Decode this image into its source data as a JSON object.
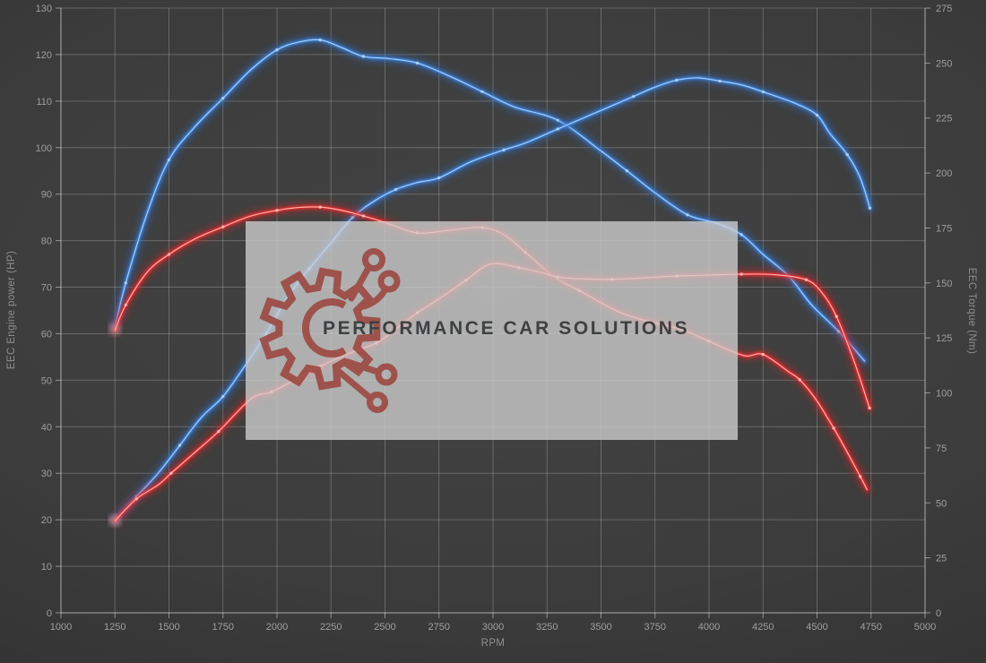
{
  "watermark": {
    "text": "PERFORMANCE CAR SOLUTIONS",
    "logo": "gear-circuit-logo",
    "logo_color": "#9a423a",
    "text_color": "#3e4042",
    "box_color": "rgba(206,206,206,0.78)"
  },
  "colors": {
    "background": "#3a3a3a",
    "grid": "rgba(255,255,255,0.22)",
    "tick_text": "#9f9f9f",
    "blue_curve": "#3c82d8",
    "red_curve": "#e23030"
  },
  "chart_data": {
    "type": "line",
    "grid": true,
    "legend_position": "none",
    "x_axis": {
      "label": "RPM",
      "min": 1000,
      "max": 5000,
      "step": 250,
      "ticks": [
        "1000",
        "1250",
        "1500",
        "1750",
        "2000",
        "2250",
        "2500",
        "2750",
        "3000",
        "3250",
        "3500",
        "3750",
        "4000",
        "4250",
        "4500",
        "4750",
        "5000"
      ]
    },
    "left_axis": {
      "label": "EEC Engine power (HP)",
      "min": 0,
      "max": 130,
      "step": 10,
      "ticks": [
        "0",
        "10",
        "20",
        "30",
        "40",
        "50",
        "60",
        "70",
        "80",
        "90",
        "100",
        "110",
        "120",
        "130"
      ]
    },
    "right_axis": {
      "label": "EEC Torque (Nm)",
      "min": 0,
      "max": 275,
      "step": 25,
      "ticks": [
        "0",
        "25",
        "50",
        "75",
        "100",
        "125",
        "150",
        "175",
        "200",
        "225",
        "250",
        "275"
      ]
    },
    "series": [
      {
        "name": "blue-torque",
        "axis": "right",
        "unit": "Nm",
        "color": "#3c82d8",
        "glow": "#2d6ec9",
        "highlight": "#b8d6f5",
        "points": [
          [
            1250,
            130
          ],
          [
            1300,
            150
          ],
          [
            1400,
            182
          ],
          [
            1500,
            206
          ],
          [
            1620,
            221
          ],
          [
            1750,
            234
          ],
          [
            1880,
            247
          ],
          [
            2000,
            256
          ],
          [
            2100,
            259.5
          ],
          [
            2200,
            260.5
          ],
          [
            2300,
            257
          ],
          [
            2400,
            253
          ],
          [
            2520,
            252
          ],
          [
            2650,
            250
          ],
          [
            2800,
            244
          ],
          [
            2950,
            237
          ],
          [
            3100,
            230
          ],
          [
            3300,
            224
          ],
          [
            3500,
            210
          ],
          [
            3620,
            201
          ],
          [
            3750,
            191
          ],
          [
            3900,
            181
          ],
          [
            4040,
            177
          ],
          [
            4150,
            172
          ],
          [
            4250,
            163
          ],
          [
            4370,
            153
          ],
          [
            4475,
            140
          ],
          [
            4600,
            128
          ],
          [
            4720,
            114.5
          ]
        ]
      },
      {
        "name": "blue-power",
        "axis": "left",
        "unit": "HP",
        "color": "#3c82d8",
        "glow": "#2d6ec9",
        "highlight": "#b8d6f5",
        "points": [
          [
            1250,
            20
          ],
          [
            1350,
            25
          ],
          [
            1450,
            30
          ],
          [
            1550,
            36
          ],
          [
            1650,
            42
          ],
          [
            1750,
            46.5
          ],
          [
            1850,
            53
          ],
          [
            1950,
            60
          ],
          [
            2050,
            68
          ],
          [
            2150,
            74
          ],
          [
            2250,
            79.5
          ],
          [
            2350,
            85
          ],
          [
            2450,
            88.5
          ],
          [
            2550,
            91
          ],
          [
            2650,
            92.5
          ],
          [
            2750,
            93.5
          ],
          [
            2900,
            97
          ],
          [
            3050,
            99.5
          ],
          [
            3150,
            101
          ],
          [
            3300,
            104
          ],
          [
            3500,
            108
          ],
          [
            3650,
            111
          ],
          [
            3750,
            113
          ],
          [
            3850,
            114.5
          ],
          [
            3950,
            115
          ],
          [
            4050,
            114.3
          ],
          [
            4150,
            113.5
          ],
          [
            4250,
            112
          ],
          [
            4400,
            109.5
          ],
          [
            4500,
            107
          ],
          [
            4560,
            103
          ],
          [
            4640,
            98.5
          ],
          [
            4700,
            93.5
          ],
          [
            4745,
            87
          ]
        ]
      },
      {
        "name": "red-torque",
        "axis": "right",
        "unit": "Nm",
        "color": "#e23030",
        "glow": "#d42020",
        "highlight": "#ffc6c6",
        "points": [
          [
            1250,
            128.5
          ],
          [
            1300,
            140
          ],
          [
            1400,
            155
          ],
          [
            1500,
            163
          ],
          [
            1620,
            170
          ],
          [
            1750,
            175.5
          ],
          [
            1880,
            180.5
          ],
          [
            2000,
            183
          ],
          [
            2100,
            184.3
          ],
          [
            2200,
            184.5
          ],
          [
            2300,
            183
          ],
          [
            2400,
            180.5
          ],
          [
            2500,
            177.5
          ],
          [
            2650,
            172.8
          ],
          [
            2800,
            174
          ],
          [
            2950,
            175.2
          ],
          [
            3050,
            172
          ],
          [
            3150,
            164
          ],
          [
            3280,
            153
          ],
          [
            3400,
            146.5
          ],
          [
            3580,
            137
          ],
          [
            3720,
            132.5
          ],
          [
            3870,
            129
          ],
          [
            4000,
            123.5
          ],
          [
            4160,
            117
          ],
          [
            4250,
            117.5
          ],
          [
            4370,
            109.5
          ],
          [
            4420,
            106
          ],
          [
            4495,
            97
          ],
          [
            4577,
            84
          ],
          [
            4640,
            73
          ],
          [
            4700,
            62
          ],
          [
            4732,
            56
          ]
        ]
      },
      {
        "name": "red-power",
        "axis": "left",
        "unit": "HP",
        "color": "#e23030",
        "glow": "#d42020",
        "highlight": "#ffc6c6",
        "points": [
          [
            1250,
            19.8
          ],
          [
            1350,
            24.5
          ],
          [
            1450,
            27.5
          ],
          [
            1510,
            30
          ],
          [
            1620,
            34.5
          ],
          [
            1730,
            39
          ],
          [
            1880,
            46
          ],
          [
            1975,
            47.5
          ],
          [
            2100,
            50.5
          ],
          [
            2200,
            53
          ],
          [
            2320,
            55.5
          ],
          [
            2460,
            58
          ],
          [
            2550,
            61
          ],
          [
            2650,
            64.5
          ],
          [
            2750,
            67.5
          ],
          [
            2875,
            71.5
          ],
          [
            2990,
            75
          ],
          [
            3120,
            74.2
          ],
          [
            3220,
            73.2
          ],
          [
            3300,
            72.2
          ],
          [
            3400,
            71.8
          ],
          [
            3550,
            71.7
          ],
          [
            3700,
            72
          ],
          [
            3850,
            72.4
          ],
          [
            4000,
            72.6
          ],
          [
            4150,
            72.8
          ],
          [
            4300,
            72.7
          ],
          [
            4450,
            71.6
          ],
          [
            4525,
            68.7
          ],
          [
            4590,
            63.7
          ],
          [
            4672,
            54
          ],
          [
            4743,
            44
          ]
        ]
      }
    ]
  }
}
